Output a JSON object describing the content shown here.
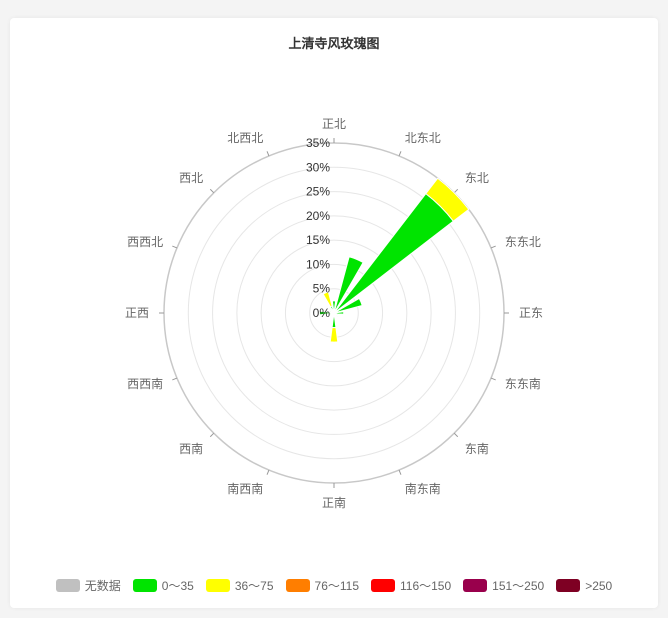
{
  "chart_data": {
    "type": "polar-stacked-bar",
    "title": "上清寺风玫瑰图",
    "directions": [
      "正北",
      "北东北",
      "东北",
      "东东北",
      "正东",
      "东东南",
      "东南",
      "南东南",
      "正南",
      "南西南",
      "西南",
      "西西南",
      "正西",
      "西西北",
      "西北",
      "北西北"
    ],
    "radial_ticks": [
      "0%",
      "5%",
      "10%",
      "15%",
      "20%",
      "25%",
      "30%",
      "35%"
    ],
    "radial_max": 35,
    "series": [
      {
        "name": "无数据",
        "color": "#c0c0c0",
        "values": [
          0,
          0,
          0,
          0,
          0,
          0,
          0,
          0,
          0,
          0,
          0,
          0,
          0,
          0,
          0,
          0
        ]
      },
      {
        "name": "0～35",
        "color": "#00e400",
        "values": [
          2.5,
          12,
          31,
          6,
          2,
          1,
          1,
          0.5,
          3,
          0.5,
          0.5,
          1,
          3,
          1,
          1,
          1.5
        ]
      },
      {
        "name": "36～75",
        "color": "#ffff00",
        "values": [
          0,
          0,
          4,
          0,
          0,
          0,
          0,
          0,
          3,
          0,
          0,
          0,
          0,
          0,
          0,
          3
        ]
      },
      {
        "name": "76～115",
        "color": "#ff7e00",
        "values": [
          0,
          0,
          0,
          0,
          0,
          0,
          0,
          0,
          0,
          0,
          0,
          0,
          0,
          0,
          0,
          0
        ]
      },
      {
        "name": "116～150",
        "color": "#ff0000",
        "values": [
          0,
          0,
          0,
          0,
          0,
          0,
          0,
          0,
          0,
          0,
          0,
          0,
          0,
          0,
          0,
          0
        ]
      },
      {
        "name": "151～250",
        "color": "#99004c",
        "values": [
          0,
          0,
          0,
          0,
          0,
          0,
          0,
          0,
          0,
          0,
          0,
          0,
          0,
          0,
          0,
          0
        ]
      },
      {
        "name": ">250",
        "color": "#7e0023",
        "values": [
          0,
          0,
          0,
          0,
          0,
          0,
          0,
          0,
          0,
          0,
          0,
          0,
          0,
          0,
          0,
          0
        ]
      }
    ],
    "grid": true,
    "legend_position": "bottom"
  }
}
